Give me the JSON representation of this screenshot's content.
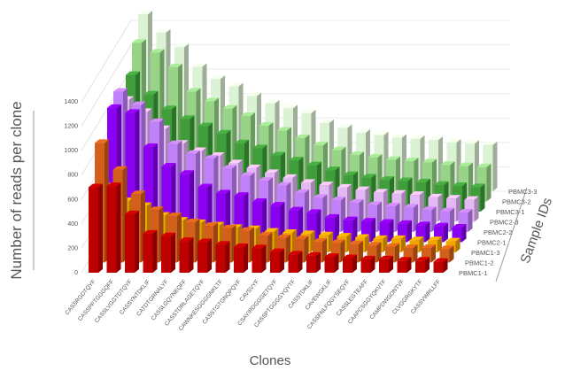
{
  "chart_data": {
    "type": "bar3d",
    "ylabel": "Number of reads per clone",
    "xlabel": "Clones",
    "zlabel": "Sample IDs",
    "ylim": [
      0,
      1400
    ],
    "yticks": [
      0,
      200,
      400,
      600,
      800,
      1000,
      1200,
      1400
    ],
    "grid": true,
    "categories": [
      "CASSRGDTQYF",
      "CASSPPTGGGQFF",
      "CASSLVGGTDTQYF",
      "CASSYNTDKLIF",
      "CATDTGRNALYF",
      "CASSLGQYNEQFF",
      "CASSTDRLAGETQYF",
      "CAWNKESGGGGNKLTF",
      "CASSTGTGNQPQYF",
      "CAVSVYF",
      "CSAYIRDGGGETQYF",
      "CASSPTGGGGYQYTF",
      "CASSTDKLIF",
      "CAVEWGKLIF",
      "CASSFNLFQGYSEQYF",
      "CASSLEGTEAFF",
      "CAAPCSGGYQKVTF",
      "CAMPDWGDNTVF",
      "CLVGGRGKYTF",
      "CASSVWRLLFF"
    ],
    "series": [
      {
        "name": "PBMC1-1",
        "color": "#c00000",
        "values": [
          700,
          710,
          480,
          320,
          300,
          260,
          250,
          230,
          210,
          200,
          170,
          150,
          140,
          130,
          120,
          110,
          110,
          100,
          100,
          90
        ]
      },
      {
        "name": "PBMC1-2",
        "color": "#d2601a",
        "values": [
          980,
          760,
          560,
          430,
          380,
          330,
          300,
          280,
          260,
          220,
          200,
          190,
          170,
          160,
          150,
          140,
          130,
          120,
          120,
          110
        ]
      },
      {
        "name": "PBMC1-3",
        "color": "#f0a500",
        "values": [
          540,
          420,
          380,
          300,
          260,
          240,
          220,
          200,
          190,
          170,
          160,
          150,
          140,
          130,
          120,
          110,
          110,
          100,
          100,
          90
        ]
      },
      {
        "name": "PBMC2-1",
        "color": "#8a00f0",
        "values": [
          1100,
          1060,
          780,
          620,
          560,
          450,
          400,
          380,
          330,
          300,
          260,
          240,
          200,
          180,
          170,
          160,
          150,
          140,
          130,
          120
        ]
      },
      {
        "name": "PBMC2-2",
        "color": "#c080f8",
        "values": [
          1150,
          1040,
          900,
          720,
          640,
          600,
          520,
          460,
          420,
          380,
          320,
          280,
          260,
          240,
          220,
          210,
          200,
          180,
          170,
          160
        ]
      },
      {
        "name": "PBMC2-3",
        "color": "#e4b8f4",
        "values": [
          1000,
          900,
          760,
          640,
          580,
          540,
          480,
          440,
          400,
          360,
          320,
          300,
          280,
          260,
          240,
          230,
          220,
          200,
          190,
          180
        ]
      },
      {
        "name": "PBMC3-1",
        "color": "#3f9e3a",
        "values": [
          1120,
          960,
          840,
          760,
          700,
          640,
          560,
          520,
          460,
          420,
          380,
          340,
          300,
          280,
          260,
          250,
          240,
          220,
          210,
          200
        ]
      },
      {
        "name": "PBMC3-2",
        "color": "#98d488",
        "values": [
          1300,
          1220,
          1100,
          900,
          820,
          760,
          700,
          620,
          580,
          520,
          460,
          420,
          380,
          360,
          340,
          330,
          320,
          300,
          290,
          280
        ]
      },
      {
        "name": "PBMC3-3",
        "color": "#dcf2d4",
        "values": [
          1450,
          1300,
          1180,
          1020,
          920,
          860,
          780,
          720,
          680,
          640,
          560,
          520,
          480,
          460,
          440,
          430,
          420,
          400,
          390,
          380
        ]
      }
    ]
  }
}
